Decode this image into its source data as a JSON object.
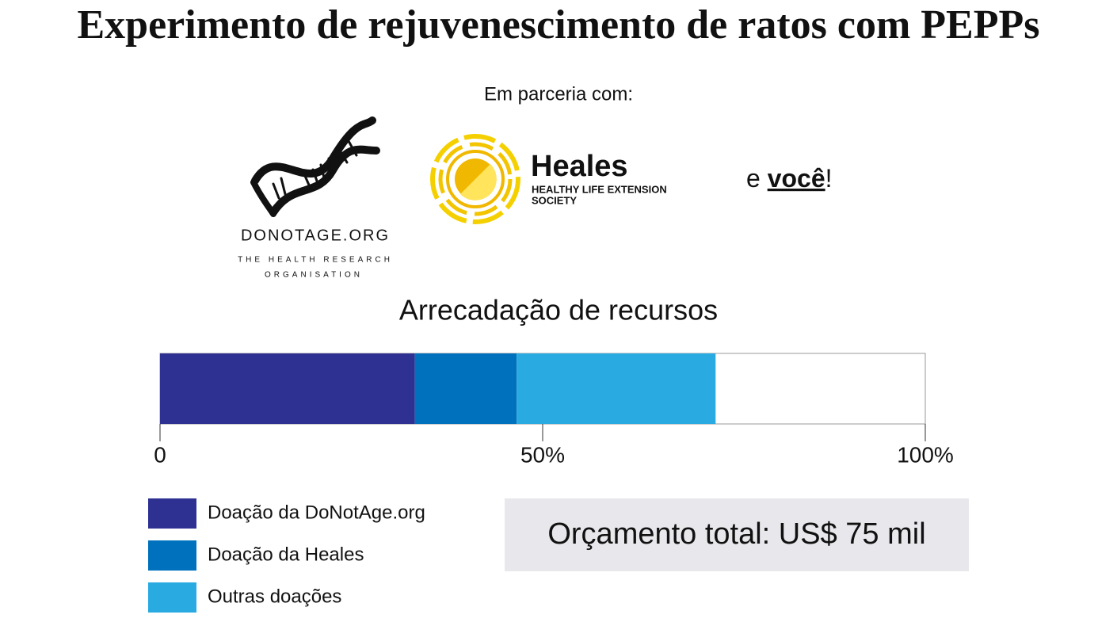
{
  "header": {
    "title": "Experimento de rejuvenescimento de ratos com PEPPs"
  },
  "partners": {
    "intro": "Em parceria com:",
    "donotage": {
      "name": "DONOTAGE.ORG",
      "tagline_1": "THE HEALTH RESEARCH",
      "tagline_2": "ORGANISATION"
    },
    "heales": {
      "name": "Heales",
      "tagline_1": "HEALTHY LIFE EXTENSION",
      "tagline_2": "SOCIETY"
    },
    "you": {
      "prefix": "e",
      "emphasis": "você",
      "suffix": "!"
    }
  },
  "chart_data": {
    "type": "stacked-progress",
    "title": "Arrecadação de recursos",
    "series": [
      {
        "name": "Doação da DoNotAge.org",
        "color": "#2e3192",
        "values": [
          33.3
        ]
      },
      {
        "name": "Doação da Heales",
        "color": "#0071bc",
        "values": [
          13.3
        ]
      },
      {
        "name": "Outras doações",
        "color": "#29abe2",
        "values": [
          26
        ]
      }
    ],
    "xlim": [
      0,
      100
    ],
    "xticks": [
      0,
      {
        "value": 50,
        "label": "50%"
      },
      {
        "value": 100,
        "label": "100%"
      }
    ]
  },
  "budget": "Orçamento total: US$ 75 mil"
}
